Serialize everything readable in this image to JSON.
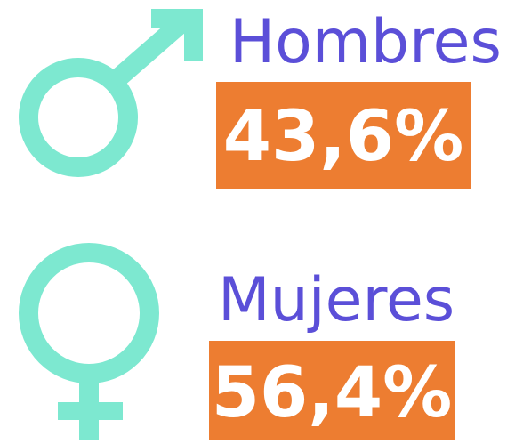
{
  "items": [
    {
      "label": "Hombres",
      "value": "43,6%"
    },
    {
      "label": "Mujeres",
      "value": "56,4%"
    }
  ]
}
